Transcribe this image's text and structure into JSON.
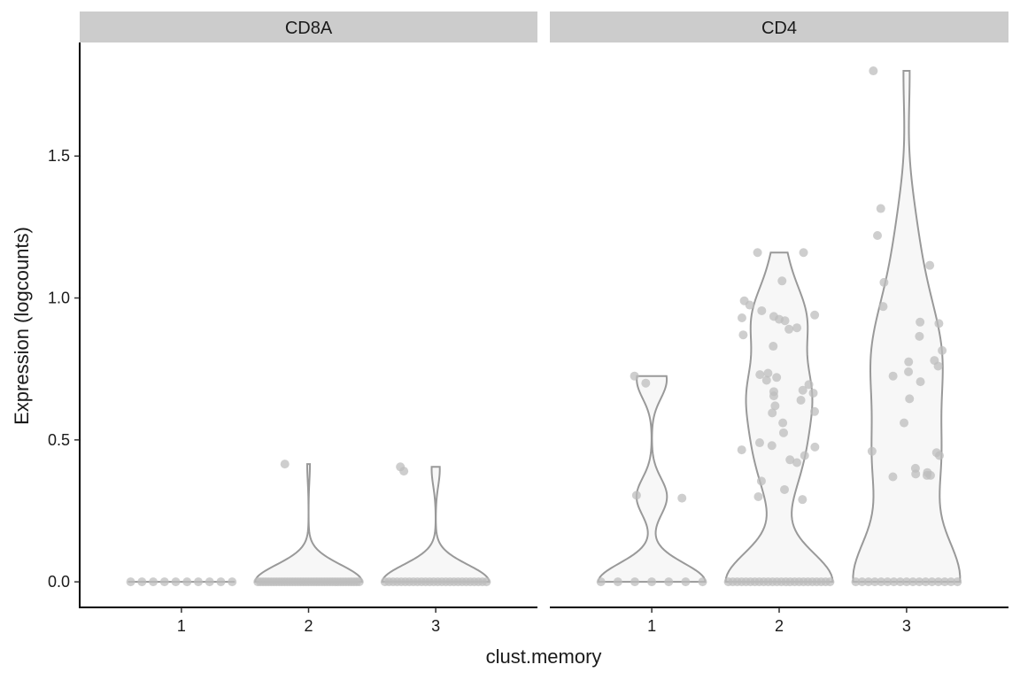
{
  "chart_data": {
    "type": "violin",
    "xlabel": "clust.memory",
    "ylabel": "Expression (logcounts)",
    "categories": [
      "1",
      "2",
      "3"
    ],
    "ylim": [
      -0.09,
      1.9
    ],
    "yticks": [
      0.0,
      0.5,
      1.0,
      1.5
    ],
    "ytick_labels": [
      "0.0",
      "0.5",
      "1.0",
      "1.5"
    ],
    "colors": {
      "violin_fill": "#f7f7f7",
      "violin_stroke": "#999999",
      "point": "#bdbdbd",
      "strip": "#cccccc"
    },
    "panels": [
      {
        "name": "CD8A",
        "groups": [
          {
            "category": "1",
            "max": 0.0,
            "points": [
              0,
              0,
              0,
              0,
              0,
              0,
              0,
              0,
              0,
              0
            ]
          },
          {
            "category": "2",
            "max": 0.415,
            "points": [
              0.415,
              0,
              0,
              0,
              0,
              0,
              0,
              0,
              0,
              0,
              0,
              0,
              0,
              0,
              0,
              0,
              0,
              0,
              0,
              0,
              0,
              0,
              0,
              0,
              0,
              0,
              0,
              0,
              0,
              0,
              0,
              0,
              0,
              0,
              0,
              0,
              0,
              0,
              0,
              0
            ]
          },
          {
            "category": "3",
            "max": 0.405,
            "points": [
              0.405,
              0.39,
              0,
              0,
              0,
              0,
              0,
              0,
              0,
              0,
              0,
              0,
              0,
              0,
              0,
              0,
              0,
              0,
              0,
              0,
              0,
              0,
              0,
              0,
              0,
              0,
              0,
              0
            ]
          }
        ]
      },
      {
        "name": "CD4",
        "groups": [
          {
            "category": "1",
            "max": 0.725,
            "points": [
              0.725,
              0.7,
              0.305,
              0.295,
              0,
              0,
              0,
              0,
              0,
              0,
              0
            ]
          },
          {
            "category": "2",
            "max": 1.16,
            "points": [
              1.16,
              1.16,
              1.06,
              0.99,
              0.975,
              0.955,
              0.94,
              0.935,
              0.93,
              0.925,
              0.92,
              0.895,
              0.89,
              0.87,
              0.83,
              0.735,
              0.73,
              0.72,
              0.71,
              0.695,
              0.675,
              0.67,
              0.665,
              0.655,
              0.64,
              0.62,
              0.6,
              0.595,
              0.56,
              0.525,
              0.49,
              0.48,
              0.475,
              0.465,
              0.445,
              0.43,
              0.42,
              0.355,
              0.325,
              0.3,
              0.29,
              0,
              0,
              0,
              0,
              0,
              0,
              0,
              0,
              0,
              0,
              0,
              0,
              0,
              0,
              0,
              0,
              0,
              0,
              0,
              0,
              0,
              0,
              0,
              0
            ]
          },
          {
            "category": "3",
            "max": 1.8,
            "points": [
              1.8,
              1.315,
              1.22,
              1.115,
              1.055,
              0.97,
              0.915,
              0.91,
              0.865,
              0.815,
              0.78,
              0.775,
              0.76,
              0.74,
              0.725,
              0.705,
              0.645,
              0.56,
              0.46,
              0.455,
              0.445,
              0.4,
              0.385,
              0.38,
              0.375,
              0.375,
              0.37,
              0,
              0,
              0,
              0,
              0,
              0,
              0,
              0,
              0,
              0,
              0,
              0,
              0,
              0,
              0,
              0,
              0
            ]
          }
        ]
      }
    ]
  }
}
